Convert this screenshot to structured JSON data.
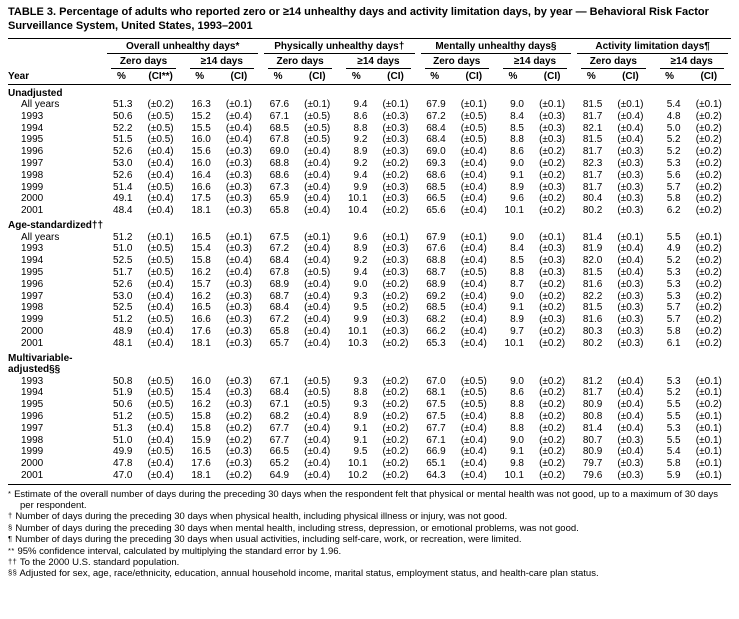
{
  "title": "TABLE 3. Percentage of adults who reported zero or ≥14 unhealthy days and activity limitation days, by year — Behavioral Risk Factor Surveillance System, United States, 1993–2001",
  "table": {
    "year_col_header": "Year",
    "groups": [
      {
        "label": "Overall unhealthy days*",
        "subgroups": [
          {
            "label": "Zero days",
            "cols": [
              "%",
              "(CI**)"
            ]
          },
          {
            "label": "≥14 days",
            "cols": [
              "%",
              "(CI)"
            ]
          }
        ]
      },
      {
        "label": "Physically unhealthy days†",
        "subgroups": [
          {
            "label": "Zero days",
            "cols": [
              "%",
              "(CI)"
            ]
          },
          {
            "label": "≥14 days",
            "cols": [
              "%",
              "(CI)"
            ]
          }
        ]
      },
      {
        "label": "Mentally unhealthy days§",
        "subgroups": [
          {
            "label": "Zero days",
            "cols": [
              "%",
              "(CI)"
            ]
          },
          {
            "label": "≥14 days",
            "cols": [
              "%",
              "(CI)"
            ]
          }
        ]
      },
      {
        "label": "Activity limitation days¶",
        "subgroups": [
          {
            "label": "Zero days",
            "cols": [
              "%",
              "(CI)"
            ]
          },
          {
            "label": "≥14 days",
            "cols": [
              "%",
              "(CI)"
            ]
          }
        ]
      }
    ],
    "sections": [
      {
        "label": "Unadjusted",
        "rows": [
          {
            "year": "All years",
            "values": [
              "51.3",
              "(±0.2)",
              "16.3",
              "(±0.1)",
              "67.6",
              "(±0.1)",
              "9.4",
              "(±0.1)",
              "67.9",
              "(±0.1)",
              "9.0",
              "(±0.1)",
              "81.5",
              "(±0.1)",
              "5.4",
              "(±0.1)"
            ]
          },
          {
            "year": "1993",
            "values": [
              "50.6",
              "(±0.5)",
              "15.2",
              "(±0.4)",
              "67.1",
              "(±0.5)",
              "8.6",
              "(±0.3)",
              "67.2",
              "(±0.5)",
              "8.4",
              "(±0.3)",
              "81.7",
              "(±0.4)",
              "4.8",
              "(±0.2)"
            ]
          },
          {
            "year": "1994",
            "values": [
              "52.2",
              "(±0.5)",
              "15.5",
              "(±0.4)",
              "68.5",
              "(±0.5)",
              "8.8",
              "(±0.3)",
              "68.4",
              "(±0.5)",
              "8.5",
              "(±0.3)",
              "82.1",
              "(±0.4)",
              "5.0",
              "(±0.2)"
            ]
          },
          {
            "year": "1995",
            "values": [
              "51.5",
              "(±0.5)",
              "16.0",
              "(±0.4)",
              "67.8",
              "(±0.5)",
              "9.2",
              "(±0.3)",
              "68.4",
              "(±0.5)",
              "8.8",
              "(±0.3)",
              "81.5",
              "(±0.4)",
              "5.2",
              "(±0.2)"
            ]
          },
          {
            "year": "1996",
            "values": [
              "52.6",
              "(±0.4)",
              "15.6",
              "(±0.3)",
              "69.0",
              "(±0.4)",
              "8.9",
              "(±0.3)",
              "69.0",
              "(±0.4)",
              "8.6",
              "(±0.2)",
              "81.7",
              "(±0.3)",
              "5.2",
              "(±0.2)"
            ]
          },
          {
            "year": "1997",
            "values": [
              "53.0",
              "(±0.4)",
              "16.0",
              "(±0.3)",
              "68.8",
              "(±0.4)",
              "9.2",
              "(±0.2)",
              "69.3",
              "(±0.4)",
              "9.0",
              "(±0.2)",
              "82.3",
              "(±0.3)",
              "5.3",
              "(±0.2)"
            ]
          },
          {
            "year": "1998",
            "values": [
              "52.6",
              "(±0.4)",
              "16.4",
              "(±0.3)",
              "68.6",
              "(±0.4)",
              "9.4",
              "(±0.2)",
              "68.6",
              "(±0.4)",
              "9.1",
              "(±0.2)",
              "81.7",
              "(±0.3)",
              "5.6",
              "(±0.2)"
            ]
          },
          {
            "year": "1999",
            "values": [
              "51.4",
              "(±0.5)",
              "16.6",
              "(±0.3)",
              "67.3",
              "(±0.4)",
              "9.9",
              "(±0.3)",
              "68.5",
              "(±0.4)",
              "8.9",
              "(±0.3)",
              "81.7",
              "(±0.3)",
              "5.7",
              "(±0.2)"
            ]
          },
          {
            "year": "2000",
            "values": [
              "49.1",
              "(±0.4)",
              "17.5",
              "(±0.3)",
              "65.9",
              "(±0.4)",
              "10.1",
              "(±0.3)",
              "66.5",
              "(±0.4)",
              "9.6",
              "(±0.2)",
              "80.4",
              "(±0.3)",
              "5.8",
              "(±0.2)"
            ]
          },
          {
            "year": "2001",
            "values": [
              "48.4",
              "(±0.4)",
              "18.1",
              "(±0.3)",
              "65.8",
              "(±0.4)",
              "10.4",
              "(±0.2)",
              "65.6",
              "(±0.4)",
              "10.1",
              "(±0.2)",
              "80.2",
              "(±0.3)",
              "6.2",
              "(±0.2)"
            ]
          }
        ]
      },
      {
        "label": "Age-standardized††",
        "rows": [
          {
            "year": "All years",
            "values": [
              "51.2",
              "(±0.1)",
              "16.5",
              "(±0.1)",
              "67.5",
              "(±0.1)",
              "9.6",
              "(±0.1)",
              "67.9",
              "(±0.1)",
              "9.0",
              "(±0.1)",
              "81.4",
              "(±0.1)",
              "5.5",
              "(±0.1)"
            ]
          },
          {
            "year": "1993",
            "values": [
              "51.0",
              "(±0.5)",
              "15.4",
              "(±0.3)",
              "67.2",
              "(±0.4)",
              "8.9",
              "(±0.3)",
              "67.6",
              "(±0.4)",
              "8.4",
              "(±0.3)",
              "81.9",
              "(±0.4)",
              "4.9",
              "(±0.2)"
            ]
          },
          {
            "year": "1994",
            "values": [
              "52.5",
              "(±0.5)",
              "15.8",
              "(±0.4)",
              "68.4",
              "(±0.4)",
              "9.2",
              "(±0.3)",
              "68.8",
              "(±0.4)",
              "8.5",
              "(±0.3)",
              "82.0",
              "(±0.4)",
              "5.2",
              "(±0.2)"
            ]
          },
          {
            "year": "1995",
            "values": [
              "51.7",
              "(±0.5)",
              "16.2",
              "(±0.4)",
              "67.8",
              "(±0.5)",
              "9.4",
              "(±0.3)",
              "68.7",
              "(±0.5)",
              "8.8",
              "(±0.3)",
              "81.5",
              "(±0.4)",
              "5.3",
              "(±0.2)"
            ]
          },
          {
            "year": "1996",
            "values": [
              "52.6",
              "(±0.4)",
              "15.7",
              "(±0.3)",
              "68.9",
              "(±0.4)",
              "9.0",
              "(±0.2)",
              "68.9",
              "(±0.4)",
              "8.7",
              "(±0.2)",
              "81.6",
              "(±0.3)",
              "5.3",
              "(±0.2)"
            ]
          },
          {
            "year": "1997",
            "values": [
              "53.0",
              "(±0.4)",
              "16.2",
              "(±0.3)",
              "68.7",
              "(±0.4)",
              "9.3",
              "(±0.2)",
              "69.2",
              "(±0.4)",
              "9.0",
              "(±0.2)",
              "82.2",
              "(±0.3)",
              "5.3",
              "(±0.2)"
            ]
          },
          {
            "year": "1998",
            "values": [
              "52.5",
              "(±0.4)",
              "16.5",
              "(±0.3)",
              "68.4",
              "(±0.4)",
              "9.5",
              "(±0.2)",
              "68.5",
              "(±0.4)",
              "9.1",
              "(±0.2)",
              "81.5",
              "(±0.3)",
              "5.7",
              "(±0.2)"
            ]
          },
          {
            "year": "1999",
            "values": [
              "51.2",
              "(±0.5)",
              "16.6",
              "(±0.3)",
              "67.2",
              "(±0.4)",
              "9.9",
              "(±0.3)",
              "68.2",
              "(±0.4)",
              "8.9",
              "(±0.3)",
              "81.6",
              "(±0.3)",
              "5.7",
              "(±0.2)"
            ]
          },
          {
            "year": "2000",
            "values": [
              "48.9",
              "(±0.4)",
              "17.6",
              "(±0.3)",
              "65.8",
              "(±0.4)",
              "10.1",
              "(±0.3)",
              "66.2",
              "(±0.4)",
              "9.7",
              "(±0.2)",
              "80.3",
              "(±0.3)",
              "5.8",
              "(±0.2)"
            ]
          },
          {
            "year": "2001",
            "values": [
              "48.1",
              "(±0.4)",
              "18.1",
              "(±0.3)",
              "65.7",
              "(±0.4)",
              "10.3",
              "(±0.2)",
              "65.3",
              "(±0.4)",
              "10.1",
              "(±0.2)",
              "80.2",
              "(±0.3)",
              "6.1",
              "(±0.2)"
            ]
          }
        ]
      },
      {
        "label": "Multivariable-adjusted§§",
        "rows": [
          {
            "year": "1993",
            "values": [
              "50.8",
              "(±0.5)",
              "16.0",
              "(±0.3)",
              "67.1",
              "(±0.5)",
              "9.3",
              "(±0.2)",
              "67.0",
              "(±0.5)",
              "9.0",
              "(±0.2)",
              "81.2",
              "(±0.4)",
              "5.3",
              "(±0.1)"
            ]
          },
          {
            "year": "1994",
            "values": [
              "51.9",
              "(±0.5)",
              "15.4",
              "(±0.3)",
              "68.4",
              "(±0.5)",
              "8.8",
              "(±0.2)",
              "68.1",
              "(±0.5)",
              "8.6",
              "(±0.2)",
              "81.7",
              "(±0.4)",
              "5.2",
              "(±0.1)"
            ]
          },
          {
            "year": "1995",
            "values": [
              "50.6",
              "(±0.5)",
              "16.2",
              "(±0.3)",
              "67.1",
              "(±0.5)",
              "9.3",
              "(±0.2)",
              "67.5",
              "(±0.5)",
              "8.8",
              "(±0.2)",
              "80.9",
              "(±0.4)",
              "5.5",
              "(±0.2)"
            ]
          },
          {
            "year": "1996",
            "values": [
              "51.2",
              "(±0.5)",
              "15.8",
              "(±0.2)",
              "68.2",
              "(±0.4)",
              "8.9",
              "(±0.2)",
              "67.5",
              "(±0.4)",
              "8.8",
              "(±0.2)",
              "80.8",
              "(±0.4)",
              "5.5",
              "(±0.1)"
            ]
          },
          {
            "year": "1997",
            "values": [
              "51.3",
              "(±0.4)",
              "15.8",
              "(±0.2)",
              "67.7",
              "(±0.4)",
              "9.1",
              "(±0.2)",
              "67.7",
              "(±0.4)",
              "8.8",
              "(±0.2)",
              "81.4",
              "(±0.4)",
              "5.3",
              "(±0.1)"
            ]
          },
          {
            "year": "1998",
            "values": [
              "51.0",
              "(±0.4)",
              "15.9",
              "(±0.2)",
              "67.7",
              "(±0.4)",
              "9.1",
              "(±0.2)",
              "67.1",
              "(±0.4)",
              "9.0",
              "(±0.2)",
              "80.7",
              "(±0.3)",
              "5.5",
              "(±0.1)"
            ]
          },
          {
            "year": "1999",
            "values": [
              "49.9",
              "(±0.5)",
              "16.5",
              "(±0.3)",
              "66.5",
              "(±0.4)",
              "9.5",
              "(±0.2)",
              "66.9",
              "(±0.4)",
              "9.1",
              "(±0.2)",
              "80.9",
              "(±0.4)",
              "5.4",
              "(±0.1)"
            ]
          },
          {
            "year": "2000",
            "values": [
              "47.8",
              "(±0.4)",
              "17.6",
              "(±0.3)",
              "65.2",
              "(±0.4)",
              "10.1",
              "(±0.2)",
              "65.1",
              "(±0.4)",
              "9.8",
              "(±0.2)",
              "79.7",
              "(±0.3)",
              "5.8",
              "(±0.1)"
            ]
          },
          {
            "year": "2001",
            "values": [
              "47.0",
              "(±0.4)",
              "18.1",
              "(±0.2)",
              "64.9",
              "(±0.4)",
              "10.2",
              "(±0.2)",
              "64.3",
              "(±0.4)",
              "10.1",
              "(±0.2)",
              "79.6",
              "(±0.3)",
              "5.9",
              "(±0.1)"
            ]
          }
        ]
      }
    ]
  },
  "footnotes": [
    {
      "marker": "*",
      "text": "Estimate of the overall number of days during the preceding 30 days when the respondent felt that physical or mental health was not good, up to a maximum of 30 days per respondent."
    },
    {
      "marker": "†",
      "text": "Number of days during the preceding 30 days when physical health, including physical illness or injury, was not good."
    },
    {
      "marker": "§",
      "text": "Number of days during the preceding 30 days when mental health, including stress, depression, or emotional problems, was not good."
    },
    {
      "marker": "¶",
      "text": "Number of days during the preceding 30 days when usual activities, including self-care, work, or recreation, were limited."
    },
    {
      "marker": "**",
      "text": "95% confidence interval, calculated by multiplying the standard error by 1.96."
    },
    {
      "marker": "††",
      "text": "To the 2000 U.S. standard population."
    },
    {
      "marker": "§§",
      "text": "Adjusted for sex, age, race/ethnicity, education, annual household income, marital status, employment status, and health-care plan status."
    }
  ]
}
